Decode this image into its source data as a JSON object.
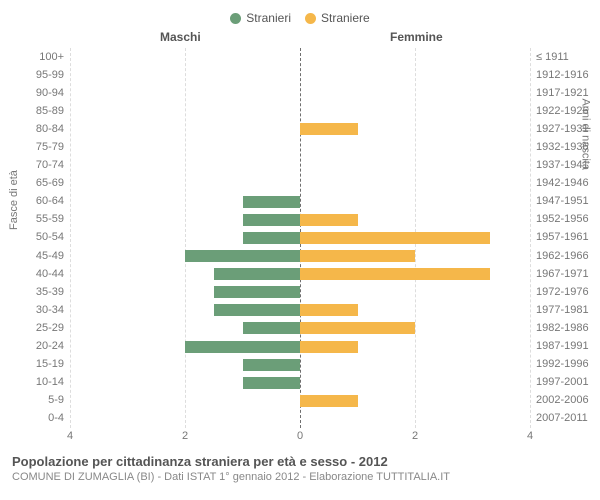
{
  "legend": {
    "male": {
      "label": "Stranieri",
      "color": "#6b9e78"
    },
    "female": {
      "label": "Straniere",
      "color": "#f5b74a"
    }
  },
  "headers": {
    "left": "Maschi",
    "right": "Femmine"
  },
  "axis": {
    "left_title": "Fasce di età",
    "right_title": "Anni di nascita",
    "x_ticks": [
      4,
      2,
      0,
      2,
      4
    ],
    "x_max": 4
  },
  "colors": {
    "background": "#ffffff",
    "grid": "#e0e0e0",
    "center_line": "#555555"
  },
  "rows": [
    {
      "age": "100+",
      "year": "≤ 1911",
      "m": 0,
      "f": 0
    },
    {
      "age": "95-99",
      "year": "1912-1916",
      "m": 0,
      "f": 0
    },
    {
      "age": "90-94",
      "year": "1917-1921",
      "m": 0,
      "f": 0
    },
    {
      "age": "85-89",
      "year": "1922-1926",
      "m": 0,
      "f": 0
    },
    {
      "age": "80-84",
      "year": "1927-1931",
      "m": 0,
      "f": 1
    },
    {
      "age": "75-79",
      "year": "1932-1936",
      "m": 0,
      "f": 0
    },
    {
      "age": "70-74",
      "year": "1937-1941",
      "m": 0,
      "f": 0
    },
    {
      "age": "65-69",
      "year": "1942-1946",
      "m": 0,
      "f": 0
    },
    {
      "age": "60-64",
      "year": "1947-1951",
      "m": 1,
      "f": 0
    },
    {
      "age": "55-59",
      "year": "1952-1956",
      "m": 1,
      "f": 1
    },
    {
      "age": "50-54",
      "year": "1957-1961",
      "m": 1,
      "f": 3.3
    },
    {
      "age": "45-49",
      "year": "1962-1966",
      "m": 2,
      "f": 2
    },
    {
      "age": "40-44",
      "year": "1967-1971",
      "m": 1.5,
      "f": 3.3
    },
    {
      "age": "35-39",
      "year": "1972-1976",
      "m": 1.5,
      "f": 0
    },
    {
      "age": "30-34",
      "year": "1977-1981",
      "m": 1.5,
      "f": 1
    },
    {
      "age": "25-29",
      "year": "1982-1986",
      "m": 1,
      "f": 2
    },
    {
      "age": "20-24",
      "year": "1987-1991",
      "m": 2,
      "f": 1
    },
    {
      "age": "15-19",
      "year": "1992-1996",
      "m": 1,
      "f": 0
    },
    {
      "age": "10-14",
      "year": "1997-2001",
      "m": 1,
      "f": 0
    },
    {
      "age": "5-9",
      "year": "2002-2006",
      "m": 0,
      "f": 1
    },
    {
      "age": "0-4",
      "year": "2007-2011",
      "m": 0,
      "f": 0
    }
  ],
  "footer": {
    "title": "Popolazione per cittadinanza straniera per età e sesso - 2012",
    "subtitle": "COMUNE DI ZUMAGLIA (BI) - Dati ISTAT 1° gennaio 2012 - Elaborazione TUTTITALIA.IT"
  },
  "chart_type": "population-pyramid"
}
